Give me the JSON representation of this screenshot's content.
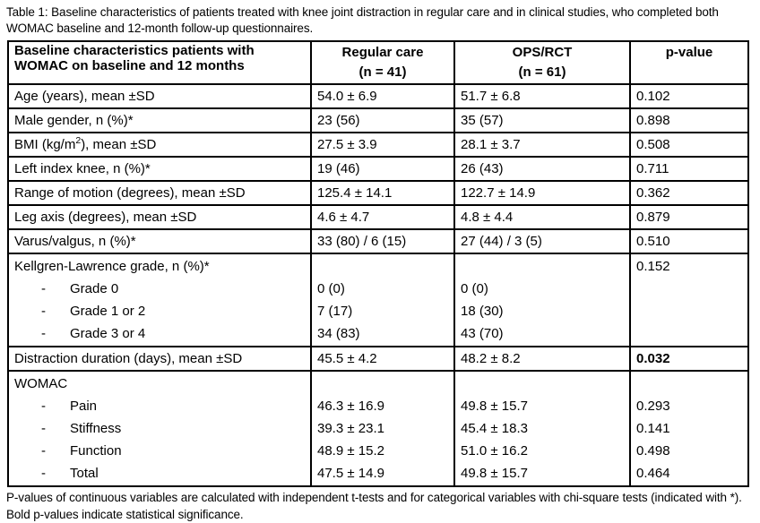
{
  "title": "Table 1: Baseline characteristics of patients treated with knee joint distraction in regular care and in clinical studies, who completed both WOMAC baseline and 12-month follow-up questionnaires.",
  "list_marker": "-",
  "table": {
    "header": {
      "characteristics": "Baseline characteristics patients with WOMAC on baseline and 12 months",
      "regular_care": "Regular care",
      "regular_care_n": "(n = 41)",
      "ops_rct": "OPS/RCT",
      "ops_rct_n": "(n = 61)",
      "p_value": "p-value"
    },
    "rows": [
      {
        "label": "Age (years), mean ±SD",
        "regular": "54.0 ± 6.9",
        "ops": "51.7 ± 6.8",
        "p": "0.102"
      },
      {
        "label": "Male gender, n (%)*",
        "regular": "23 (56)",
        "ops": "35 (57)",
        "p": "0.898"
      },
      {
        "label_pre": "BMI (kg/m",
        "label_sup": "2",
        "label_post": "), mean ±SD",
        "regular": "27.5 ± 3.9",
        "ops": "28.1 ± 3.7",
        "p": "0.508"
      },
      {
        "label": "Left index knee, n (%)*",
        "regular": "19 (46)",
        "ops": "26 (43)",
        "p": "0.711"
      },
      {
        "label": "Range of motion (degrees), mean ±SD",
        "regular": "125.4 ± 14.1",
        "ops": "122.7 ± 14.9",
        "p": "0.362"
      },
      {
        "label": "Leg axis (degrees), mean ±SD",
        "regular": "4.6 ± 4.7",
        "ops": "4.8 ± 4.4",
        "p": "0.879"
      },
      {
        "label": "Varus/valgus, n (%)*",
        "regular": "33 (80) / 6 (15)",
        "ops": "27 (44) / 3 (5)",
        "p": "0.510"
      }
    ],
    "kellgren": {
      "label": "Kellgren-Lawrence grade, n (%)*",
      "p": "0.152",
      "items": [
        {
          "label": "Grade 0",
          "regular": "0 (0)",
          "ops": "0 (0)"
        },
        {
          "label": "Grade 1 or 2",
          "regular": "7 (17)",
          "ops": "18 (30)"
        },
        {
          "label": "Grade 3 or 4",
          "regular": "34 (83)",
          "ops": "43 (70)"
        }
      ]
    },
    "distraction": {
      "label": "Distraction duration (days), mean ±SD",
      "regular": "45.5 ± 4.2",
      "ops": "48.2 ± 8.2",
      "p": "0.032"
    },
    "womac": {
      "label": "WOMAC",
      "items": [
        {
          "label": "Pain",
          "regular": "46.3 ± 16.9",
          "ops": "49.8 ± 15.7",
          "p": "0.293"
        },
        {
          "label": "Stiffness",
          "regular": "39.3 ± 23.1",
          "ops": "45.4 ± 18.3",
          "p": "0.141"
        },
        {
          "label": "Function",
          "regular": "48.9 ± 15.2",
          "ops": "51.0 ± 16.2",
          "p": "0.498"
        },
        {
          "label": "Total",
          "regular": "47.5 ± 14.9",
          "ops": "49.8 ± 15.7",
          "p": "0.464"
        }
      ]
    }
  },
  "footnote": "P-values of continuous variables are calculated with independent t-tests and for categorical variables with chi-square tests (indicated with *).  Bold p-values indicate statistical significance."
}
